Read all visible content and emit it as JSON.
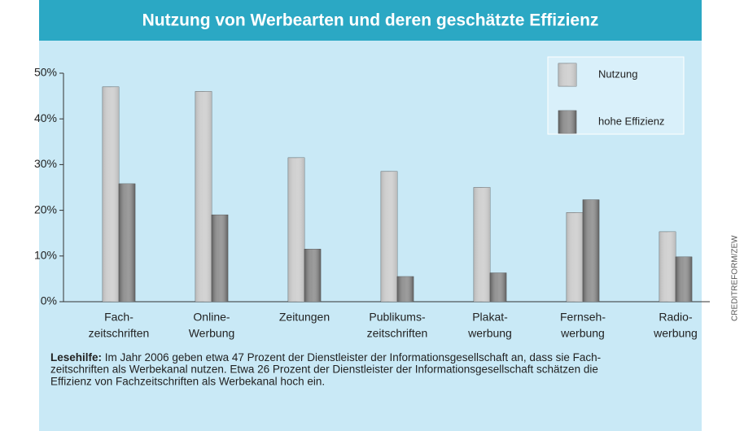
{
  "chart_data": {
    "type": "bar",
    "title": "Nutzung von Werbearten und deren geschätzte Effizienz",
    "categories": [
      [
        "Fach-",
        "zeitschriften"
      ],
      [
        "Online-",
        "Werbung"
      ],
      [
        "Zeitungen"
      ],
      [
        "Publikums-",
        "zeitschriften"
      ],
      [
        "Plakat-",
        "werbung"
      ],
      [
        "Fernseh-",
        "werbung"
      ],
      [
        "Radio-",
        "werbung"
      ]
    ],
    "series": [
      {
        "name": "Nutzung",
        "color": "#b8b8b8",
        "values": [
          47,
          46,
          31.5,
          28.5,
          25,
          19.5,
          15.3
        ]
      },
      {
        "name": "hohe Effizienz",
        "color": "#5e5e5e",
        "values": [
          25.8,
          19,
          11.5,
          5.5,
          6.3,
          22.3,
          9.8
        ]
      }
    ],
    "ylim": [
      0,
      50
    ],
    "yticks": [
      {
        "value": 0,
        "label": "0%"
      },
      {
        "value": 10,
        "label": "10%"
      },
      {
        "value": 20,
        "label": "20%"
      },
      {
        "value": 30,
        "label": "30%"
      },
      {
        "value": 40,
        "label": "40%"
      },
      {
        "value": 50,
        "label": "50%"
      }
    ],
    "grid": false,
    "legend": "top-right",
    "note": {
      "label": "Lesehilfe:",
      "lines": [
        "Im Jahr 2006 geben etwa 47 Prozent der Dienstleister der Informationsgesellschaft an, dass sie Fach-",
        "zeitschriften als Werbekanal nutzen. Etwa 26 Prozent der Dienstleister der Informationsgesellschaft schätzen die",
        "Effizienz von Fachzeitschriften als Werbekanal hoch ein."
      ]
    },
    "source": "CREDITREFORM/ZEW"
  }
}
